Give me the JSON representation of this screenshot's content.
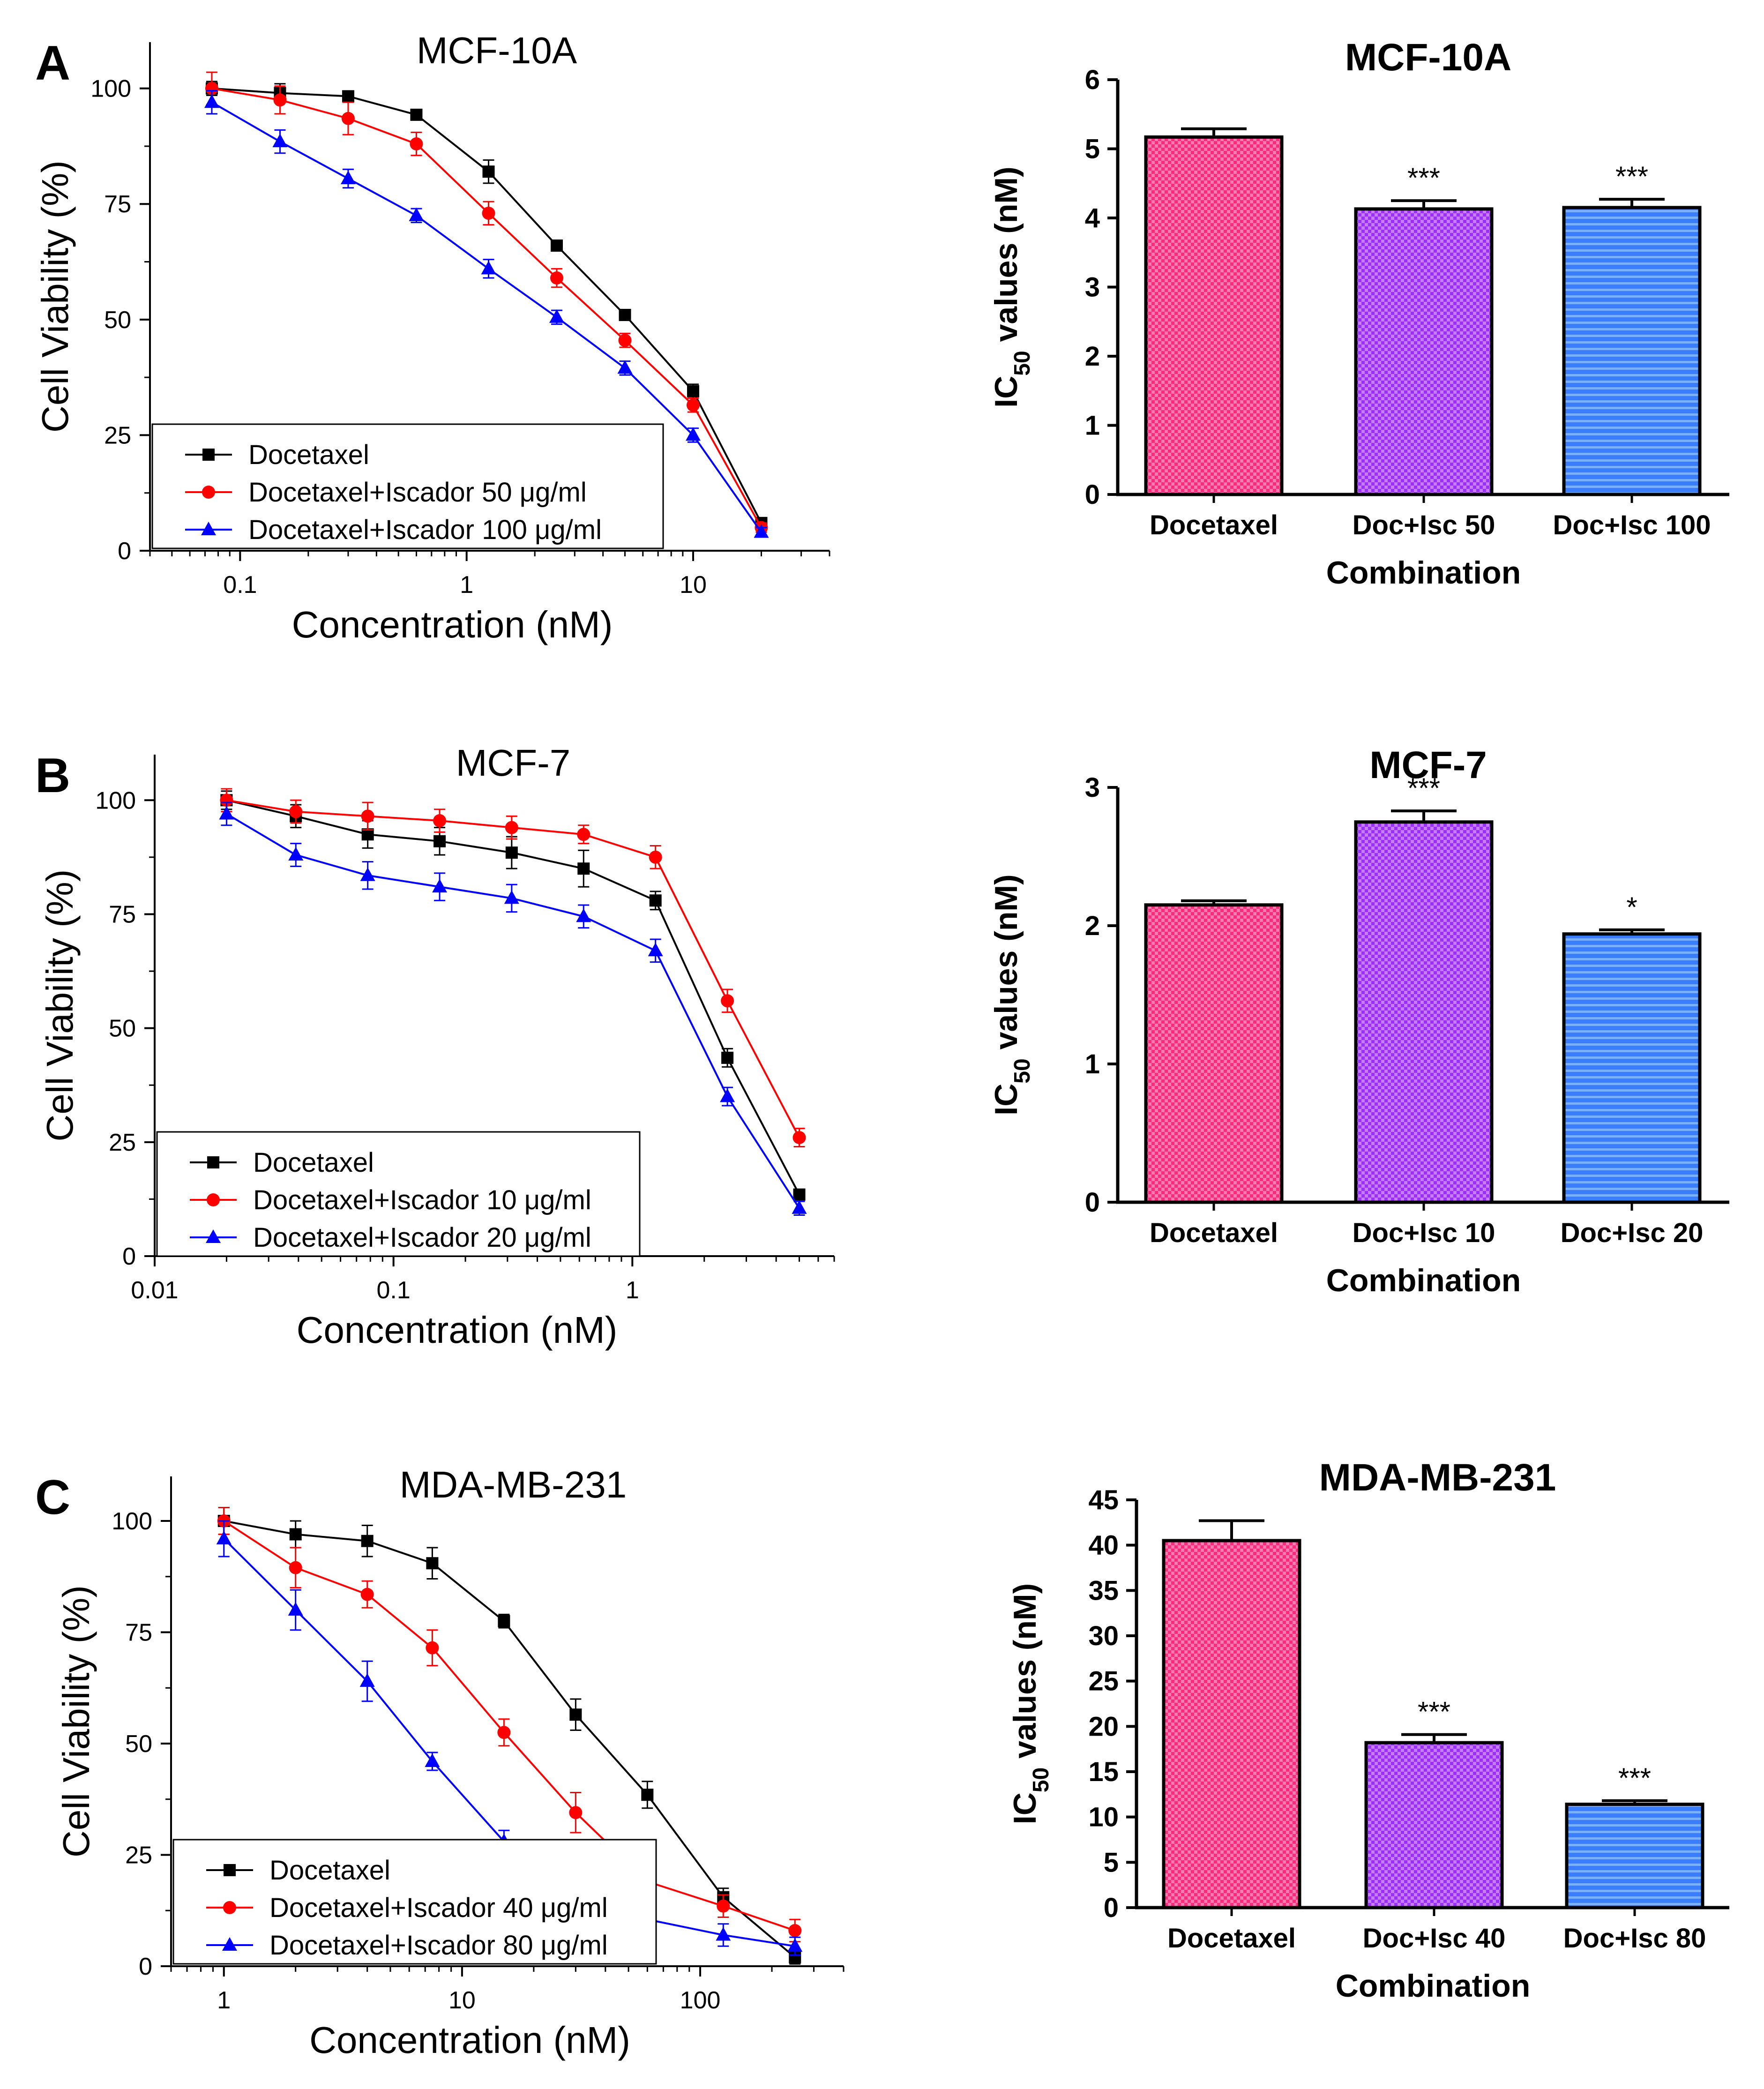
{
  "colors": {
    "docetaxel": "#000000",
    "isc_low": "#ff0000",
    "isc_high": "#0000ff",
    "bar_pink": "#ff4d94",
    "bar_purple": "#b04cff",
    "bar_blue": "#4d90ff"
  },
  "chart_data": [
    {
      "type": "line",
      "panel_label": "A",
      "title": "MCF-10A",
      "xlabel": "Concentration (nM)",
      "ylabel": "Cell Viability (%)",
      "xscale": "log",
      "xlim": [
        0.04,
        40
      ],
      "ylim": [
        0,
        110
      ],
      "xticks": [
        0.1,
        1,
        10
      ],
      "xtick_labels": [
        "0.1",
        "1",
        "10"
      ],
      "yticks": [
        0,
        25,
        50,
        75,
        100
      ],
      "ytick_labels": [
        "0",
        "25",
        "50",
        "75",
        "100"
      ],
      "legend_position": "bottom-left",
      "legend": [
        "Docetaxel",
        "Docetaxel+Iscador 50 μg/ml",
        "Docetaxel+Iscador 100 μg/ml"
      ],
      "x": [
        0.075,
        0.15,
        0.3,
        0.6,
        1.25,
        2.5,
        5,
        10,
        20
      ],
      "series": [
        {
          "name": "Docetaxel",
          "marker": "square",
          "values": [
            100,
            99,
            98.3,
            94.3,
            82,
            66,
            51,
            34.5,
            6
          ],
          "errors": [
            1.5,
            2,
            1,
            1,
            2.5,
            1,
            1,
            1.5,
            1
          ]
        },
        {
          "name": "Docetaxel+Iscador 50 μg/ml",
          "marker": "circle",
          "values": [
            100,
            97.5,
            93.5,
            88,
            73,
            59,
            45.5,
            31.5,
            5
          ],
          "errors": [
            3.5,
            3,
            3.5,
            2.5,
            2.5,
            2,
            1.5,
            1.5,
            1
          ]
        },
        {
          "name": "Docetaxel+Iscador 100 μg/ml",
          "marker": "triangle",
          "values": [
            97,
            88.5,
            80.5,
            72.5,
            61,
            50.5,
            39.5,
            25,
            4
          ],
          "errors": [
            2.5,
            2.5,
            2,
            1.5,
            2,
            1.5,
            1.5,
            1.5,
            1
          ]
        }
      ]
    },
    {
      "type": "line",
      "panel_label": "B",
      "title": "MCF-7",
      "xlabel": "Concentration (nM)",
      "ylabel": "Cell Viability (%)",
      "xscale": "log",
      "xlim": [
        0.01,
        7
      ],
      "ylim": [
        0,
        110
      ],
      "xticks": [
        0.01,
        0.1,
        1
      ],
      "xtick_labels": [
        "0.01",
        "0.1",
        "1"
      ],
      "yticks": [
        0,
        25,
        50,
        75,
        100
      ],
      "ytick_labels": [
        "0",
        "25",
        "50",
        "75",
        "100"
      ],
      "legend_position": "bottom-left",
      "legend": [
        "Docetaxel",
        "Docetaxel+Iscador 10 μg/ml",
        "Docetaxel+Iscador 20 μg/ml"
      ],
      "x": [
        0.02,
        0.039,
        0.078,
        0.156,
        0.3125,
        0.625,
        1.25,
        2.5,
        5
      ],
      "series": [
        {
          "name": "Docetaxel",
          "marker": "square",
          "values": [
            100,
            96.5,
            92.5,
            91,
            88.5,
            85,
            78,
            43.5,
            13.5
          ],
          "errors": [
            2,
            2.5,
            3,
            3,
            3.5,
            4,
            2,
            2,
            1
          ]
        },
        {
          "name": "Docetaxel+Iscador 10 μg/ml",
          "marker": "circle",
          "values": [
            100,
            97.5,
            96.5,
            95.5,
            94,
            92.5,
            87.5,
            56,
            26
          ],
          "errors": [
            2.5,
            2.5,
            3,
            2.5,
            2.5,
            2,
            2.5,
            2.5,
            2
          ]
        },
        {
          "name": "Docetaxel+Iscador 20 μg/ml",
          "marker": "triangle",
          "values": [
            97,
            88,
            83.5,
            81,
            78.5,
            74.5,
            67,
            35,
            10.5
          ],
          "errors": [
            2.5,
            2.5,
            3,
            3,
            3,
            2.5,
            2.5,
            2,
            1.5
          ]
        }
      ]
    },
    {
      "type": "line",
      "panel_label": "C",
      "title": "MDA-MB-231",
      "xlabel": "Concentration (nM)",
      "ylabel": "Cell Viability (%)",
      "xscale": "log",
      "xlim": [
        0.6,
        400
      ],
      "ylim": [
        0,
        110
      ],
      "xticks": [
        1,
        10,
        100
      ],
      "xtick_labels": [
        "1",
        "10",
        "100"
      ],
      "yticks": [
        0,
        25,
        50,
        75,
        100
      ],
      "ytick_labels": [
        "0",
        "25",
        "50",
        "75",
        "100"
      ],
      "legend_position": "bottom-left",
      "legend": [
        "Docetaxel",
        "Docetaxel+Iscador 40 μg/ml",
        "Docetaxel+Iscador 80 μg/ml"
      ],
      "x": [
        1,
        2,
        4,
        7.5,
        15,
        30,
        60,
        125,
        250
      ],
      "series": [
        {
          "name": "Docetaxel",
          "marker": "square",
          "values": [
            100,
            97,
            95.5,
            90.5,
            77.5,
            56.5,
            38.5,
            15.5,
            2
          ],
          "errors": [
            3,
            3,
            3.5,
            3.5,
            1.5,
            3.5,
            3,
            2,
            1.5
          ]
        },
        {
          "name": "Docetaxel+Iscador 40 μg/ml",
          "marker": "circle",
          "values": [
            100,
            89.5,
            83.5,
            71.5,
            52.5,
            34.5,
            19,
            13.5,
            8
          ],
          "errors": [
            3,
            4.5,
            3,
            4,
            3,
            4.5,
            2.5,
            2.5,
            2.5
          ]
        },
        {
          "name": "Docetaxel+Iscador 80 μg/ml",
          "marker": "triangle",
          "values": [
            96,
            80,
            64,
            46,
            28,
            14,
            10.5,
            7,
            4.5
          ],
          "errors": [
            4,
            4.5,
            4.5,
            2,
            2.5,
            2,
            2,
            2.5,
            2
          ]
        }
      ]
    },
    {
      "type": "bar",
      "title": "MCF-10A",
      "xlabel": "Combination",
      "ylabel": "IC50 values (nM)",
      "ylim": [
        0,
        6
      ],
      "yticks": [
        0,
        1,
        2,
        3,
        4,
        5,
        6
      ],
      "ytick_labels": [
        "0",
        "1",
        "2",
        "3",
        "4",
        "5",
        "6"
      ],
      "categories": [
        "Docetaxel",
        "Doc+Isc 50",
        "Doc+Isc 100"
      ],
      "values": [
        5.17,
        4.13,
        4.15
      ],
      "errors": [
        0.12,
        0.12,
        0.12
      ],
      "significance": [
        "",
        "***",
        "***"
      ]
    },
    {
      "type": "bar",
      "title": "MCF-7",
      "xlabel": "Combination",
      "ylabel": "IC50 values (nM)",
      "ylim": [
        0,
        3
      ],
      "yticks": [
        0,
        1,
        2,
        3
      ],
      "ytick_labels": [
        "0",
        "1",
        "2",
        "3"
      ],
      "categories": [
        "Docetaxel",
        "Doc+Isc 10",
        "Doc+Isc 20"
      ],
      "values": [
        2.15,
        2.75,
        1.94
      ],
      "errors": [
        0.03,
        0.08,
        0.03
      ],
      "significance": [
        "",
        "***",
        "*"
      ]
    },
    {
      "type": "bar",
      "title": "MDA-MB-231",
      "xlabel": "Combination",
      "ylabel": "IC50 values (nM)",
      "ylim": [
        0,
        45
      ],
      "yticks": [
        0,
        5,
        10,
        15,
        20,
        25,
        30,
        35,
        40,
        45
      ],
      "ytick_labels": [
        "0",
        "5",
        "10",
        "15",
        "20",
        "25",
        "30",
        "35",
        "40",
        "45"
      ],
      "categories": [
        "Docetaxel",
        "Doc+Isc 40",
        "Doc+Isc 80"
      ],
      "values": [
        40.5,
        18.2,
        11.4
      ],
      "errors": [
        2.2,
        0.9,
        0.4
      ],
      "significance": [
        "",
        "***",
        "***"
      ]
    }
  ]
}
